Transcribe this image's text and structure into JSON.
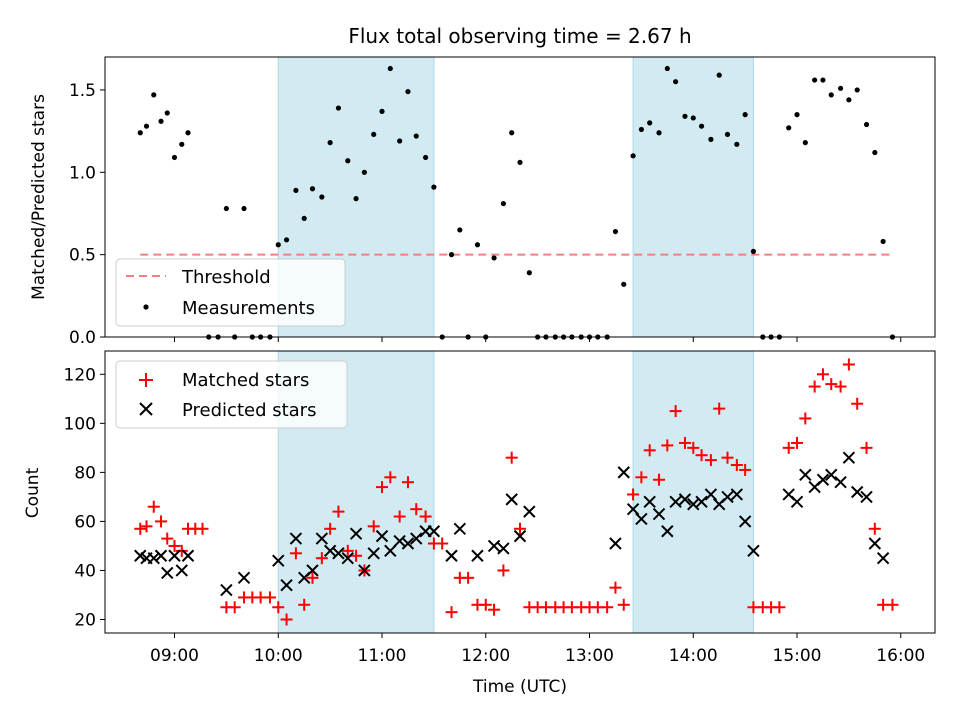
{
  "figure": {
    "title": "Flux total observing time = 2.67 h",
    "shaded_intervals": [
      [
        10.0,
        11.5
      ],
      [
        13.42,
        14.58
      ]
    ],
    "shade_color": "#add8e6"
  },
  "chart_data": [
    {
      "type": "scatter",
      "title": "Flux total observing time = 2.67 h",
      "ylabel": "Matched/Predicted stars",
      "xlim": [
        8.33,
        16.33
      ],
      "ylim": [
        0,
        1.7
      ],
      "yticks": [
        0.0,
        0.5,
        1.0,
        1.5
      ],
      "ytick_labels": [
        "0.0",
        "0.5",
        "1.0",
        "1.5"
      ],
      "legend_position": "lower-left",
      "threshold": {
        "name": "Threshold",
        "value": 0.5,
        "x_range": [
          8.67,
          15.93
        ],
        "color": "#f08080"
      },
      "series": [
        {
          "name": "Measurements",
          "color": "#000000",
          "marker": "dot",
          "points": [
            [
              8.67,
              1.24
            ],
            [
              8.73,
              1.28
            ],
            [
              8.8,
              1.47
            ],
            [
              8.87,
              1.31
            ],
            [
              8.93,
              1.36
            ],
            [
              9.0,
              1.09
            ],
            [
              9.07,
              1.17
            ],
            [
              9.13,
              1.24
            ],
            [
              9.33,
              0
            ],
            [
              9.42,
              0
            ],
            [
              9.5,
              0.78
            ],
            [
              9.58,
              0
            ],
            [
              9.67,
              0.78
            ],
            [
              9.75,
              0
            ],
            [
              9.83,
              0
            ],
            [
              9.92,
              0
            ],
            [
              10.0,
              0.56
            ],
            [
              10.08,
              0.59
            ],
            [
              10.17,
              0.89
            ],
            [
              10.25,
              0.72
            ],
            [
              10.33,
              0.9
            ],
            [
              10.42,
              0.85
            ],
            [
              10.5,
              1.18
            ],
            [
              10.58,
              1.39
            ],
            [
              10.67,
              1.07
            ],
            [
              10.75,
              0.84
            ],
            [
              10.83,
              1.0
            ],
            [
              10.92,
              1.23
            ],
            [
              11.0,
              1.37
            ],
            [
              11.08,
              1.63
            ],
            [
              11.17,
              1.19
            ],
            [
              11.25,
              1.49
            ],
            [
              11.33,
              1.22
            ],
            [
              11.42,
              1.09
            ],
            [
              11.5,
              0.91
            ],
            [
              11.58,
              0
            ],
            [
              11.67,
              0.5
            ],
            [
              11.75,
              0.65
            ],
            [
              11.83,
              0
            ],
            [
              11.92,
              0.56
            ],
            [
              12.0,
              0
            ],
            [
              12.08,
              0.48
            ],
            [
              12.17,
              0.81
            ],
            [
              12.25,
              1.24
            ],
            [
              12.33,
              1.06
            ],
            [
              12.42,
              0.39
            ],
            [
              12.5,
              0
            ],
            [
              12.58,
              0
            ],
            [
              12.67,
              0
            ],
            [
              12.75,
              0
            ],
            [
              12.83,
              0
            ],
            [
              12.92,
              0
            ],
            [
              13.0,
              0
            ],
            [
              13.08,
              0
            ],
            [
              13.17,
              0
            ],
            [
              13.25,
              0.64
            ],
            [
              13.33,
              0.32
            ],
            [
              13.42,
              1.1
            ],
            [
              13.5,
              1.26
            ],
            [
              13.58,
              1.3
            ],
            [
              13.67,
              1.24
            ],
            [
              13.75,
              1.63
            ],
            [
              13.83,
              1.55
            ],
            [
              13.92,
              1.34
            ],
            [
              14.0,
              1.33
            ],
            [
              14.08,
              1.28
            ],
            [
              14.17,
              1.2
            ],
            [
              14.25,
              1.59
            ],
            [
              14.33,
              1.23
            ],
            [
              14.42,
              1.17
            ],
            [
              14.5,
              1.35
            ],
            [
              14.58,
              0.52
            ],
            [
              14.67,
              0
            ],
            [
              14.75,
              0
            ],
            [
              14.83,
              0
            ],
            [
              14.92,
              1.27
            ],
            [
              15.0,
              1.35
            ],
            [
              15.08,
              1.18
            ],
            [
              15.17,
              1.56
            ],
            [
              15.25,
              1.56
            ],
            [
              15.33,
              1.47
            ],
            [
              15.42,
              1.51
            ],
            [
              15.5,
              1.44
            ],
            [
              15.58,
              1.5
            ],
            [
              15.67,
              1.29
            ],
            [
              15.75,
              1.12
            ],
            [
              15.83,
              0.58
            ],
            [
              15.92,
              0
            ]
          ]
        }
      ]
    },
    {
      "type": "scatter",
      "xlabel": "Time (UTC)",
      "ylabel": "Count",
      "xlim": [
        8.33,
        16.33
      ],
      "ylim": [
        14.5,
        129.5
      ],
      "xticks": [
        9,
        10,
        11,
        12,
        13,
        14,
        15,
        16
      ],
      "xtick_labels": [
        "09:00",
        "10:00",
        "11:00",
        "12:00",
        "13:00",
        "14:00",
        "15:00",
        "16:00"
      ],
      "yticks": [
        20,
        40,
        60,
        80,
        100,
        120
      ],
      "ytick_labels": [
        "20",
        "40",
        "60",
        "80",
        "100",
        "120"
      ],
      "legend_position": "upper-left",
      "series": [
        {
          "name": "Matched stars",
          "color": "#ff0000",
          "marker": "plus",
          "points": [
            [
              8.67,
              57
            ],
            [
              8.73,
              58
            ],
            [
              8.8,
              66
            ],
            [
              8.87,
              60
            ],
            [
              8.93,
              53
            ],
            [
              9.0,
              50
            ],
            [
              9.07,
              48
            ],
            [
              9.13,
              57
            ],
            [
              9.2,
              57
            ],
            [
              9.27,
              57
            ],
            [
              9.5,
              25
            ],
            [
              9.58,
              25
            ],
            [
              9.67,
              29
            ],
            [
              9.75,
              29
            ],
            [
              9.83,
              29
            ],
            [
              9.92,
              29
            ],
            [
              10.0,
              25
            ],
            [
              10.08,
              20
            ],
            [
              10.17,
              47
            ],
            [
              10.25,
              26
            ],
            [
              10.33,
              37
            ],
            [
              10.42,
              45
            ],
            [
              10.5,
              57
            ],
            [
              10.58,
              64
            ],
            [
              10.67,
              48
            ],
            [
              10.75,
              46
            ],
            [
              10.83,
              40
            ],
            [
              10.92,
              58
            ],
            [
              11.0,
              74
            ],
            [
              11.08,
              78
            ],
            [
              11.17,
              62
            ],
            [
              11.25,
              76
            ],
            [
              11.33,
              65
            ],
            [
              11.42,
              62
            ],
            [
              11.5,
              51
            ],
            [
              11.58,
              51
            ],
            [
              11.67,
              23
            ],
            [
              11.75,
              37
            ],
            [
              11.83,
              37
            ],
            [
              11.92,
              26
            ],
            [
              12.0,
              26
            ],
            [
              12.08,
              24
            ],
            [
              12.17,
              40
            ],
            [
              12.25,
              86
            ],
            [
              12.33,
              57
            ],
            [
              12.42,
              25
            ],
            [
              12.5,
              25
            ],
            [
              12.58,
              25
            ],
            [
              12.67,
              25
            ],
            [
              12.75,
              25
            ],
            [
              12.83,
              25
            ],
            [
              12.92,
              25
            ],
            [
              13.0,
              25
            ],
            [
              13.08,
              25
            ],
            [
              13.17,
              25
            ],
            [
              13.25,
              33
            ],
            [
              13.33,
              26
            ],
            [
              13.42,
              71
            ],
            [
              13.5,
              78
            ],
            [
              13.58,
              89
            ],
            [
              13.67,
              77
            ],
            [
              13.75,
              91
            ],
            [
              13.83,
              105
            ],
            [
              13.92,
              92
            ],
            [
              14.0,
              90
            ],
            [
              14.08,
              87
            ],
            [
              14.17,
              85
            ],
            [
              14.25,
              106
            ],
            [
              14.33,
              86
            ],
            [
              14.42,
              83
            ],
            [
              14.5,
              81
            ],
            [
              14.58,
              25
            ],
            [
              14.67,
              25
            ],
            [
              14.75,
              25
            ],
            [
              14.83,
              25
            ],
            [
              14.92,
              90
            ],
            [
              15.0,
              92
            ],
            [
              15.08,
              102
            ],
            [
              15.17,
              115
            ],
            [
              15.25,
              120
            ],
            [
              15.33,
              116
            ],
            [
              15.42,
              115
            ],
            [
              15.5,
              124
            ],
            [
              15.58,
              108
            ],
            [
              15.67,
              90
            ],
            [
              15.75,
              57
            ],
            [
              15.83,
              26
            ],
            [
              15.92,
              26
            ]
          ]
        },
        {
          "name": "Predicted stars",
          "color": "#000000",
          "marker": "x",
          "points": [
            [
              8.67,
              46
            ],
            [
              8.73,
              45
            ],
            [
              8.8,
              45
            ],
            [
              8.87,
              46
            ],
            [
              8.93,
              39
            ],
            [
              9.0,
              46
            ],
            [
              9.07,
              40
            ],
            [
              9.13,
              46
            ],
            [
              9.5,
              32
            ],
            [
              9.67,
              37
            ],
            [
              10.0,
              44
            ],
            [
              10.08,
              34
            ],
            [
              10.17,
              53
            ],
            [
              10.25,
              37
            ],
            [
              10.33,
              40
            ],
            [
              10.42,
              53
            ],
            [
              10.5,
              48
            ],
            [
              10.58,
              47
            ],
            [
              10.67,
              45
            ],
            [
              10.75,
              55
            ],
            [
              10.83,
              40
            ],
            [
              10.92,
              47
            ],
            [
              11.0,
              54
            ],
            [
              11.08,
              48
            ],
            [
              11.17,
              52
            ],
            [
              11.25,
              51
            ],
            [
              11.33,
              53
            ],
            [
              11.42,
              56
            ],
            [
              11.5,
              56
            ],
            [
              11.67,
              46
            ],
            [
              11.75,
              57
            ],
            [
              11.92,
              46
            ],
            [
              12.08,
              50
            ],
            [
              12.17,
              49
            ],
            [
              12.25,
              69
            ],
            [
              12.33,
              54
            ],
            [
              12.42,
              64
            ],
            [
              13.25,
              51
            ],
            [
              13.33,
              80
            ],
            [
              13.42,
              65
            ],
            [
              13.5,
              61
            ],
            [
              13.58,
              68
            ],
            [
              13.67,
              63
            ],
            [
              13.75,
              56
            ],
            [
              13.83,
              68
            ],
            [
              13.92,
              69
            ],
            [
              14.0,
              67
            ],
            [
              14.08,
              68
            ],
            [
              14.17,
              71
            ],
            [
              14.25,
              67
            ],
            [
              14.33,
              70
            ],
            [
              14.42,
              71
            ],
            [
              14.5,
              60
            ],
            [
              14.58,
              48
            ],
            [
              14.92,
              71
            ],
            [
              15.0,
              68
            ],
            [
              15.08,
              79
            ],
            [
              15.17,
              74
            ],
            [
              15.25,
              77
            ],
            [
              15.33,
              79
            ],
            [
              15.42,
              76
            ],
            [
              15.5,
              86
            ],
            [
              15.58,
              72
            ],
            [
              15.67,
              70
            ],
            [
              15.75,
              51
            ],
            [
              15.83,
              45
            ]
          ]
        }
      ]
    }
  ]
}
